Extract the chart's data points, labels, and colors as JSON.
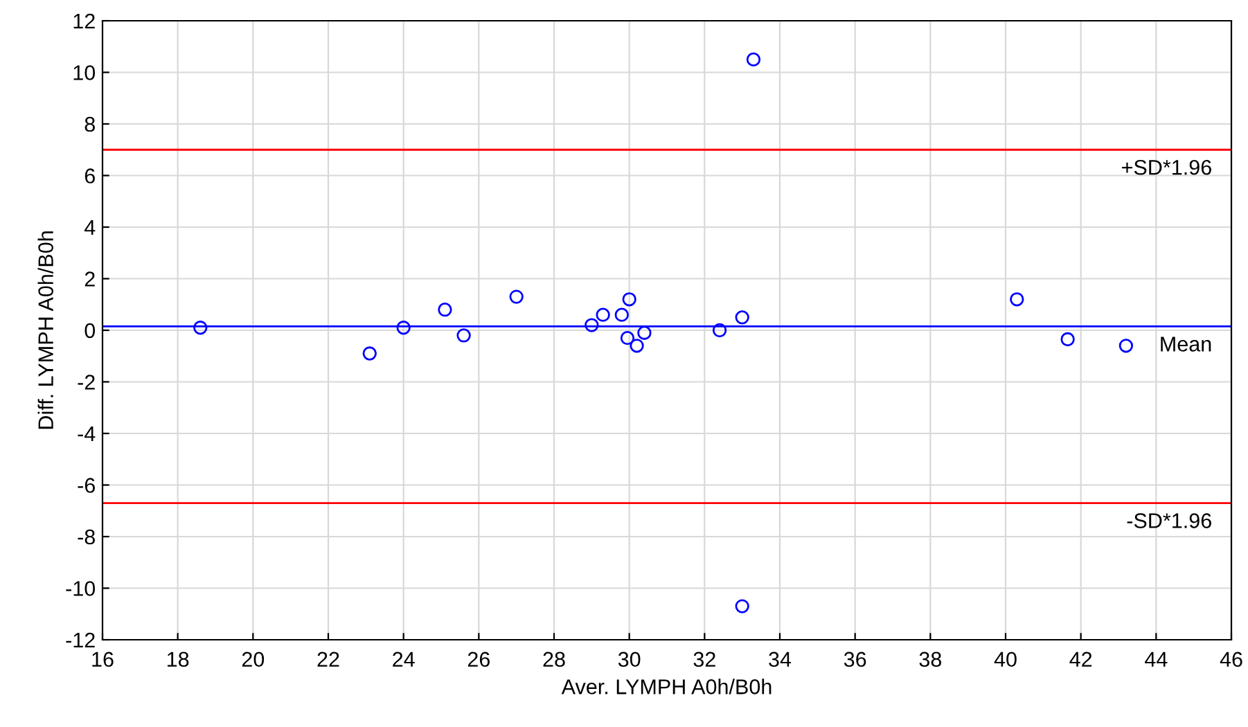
{
  "chart_data": {
    "type": "scatter",
    "xlabel": "Aver. LYMPH A0h/B0h",
    "ylabel": "Diff. LYMPH A0h/B0h",
    "x": [
      18.6,
      23.1,
      24.0,
      25.1,
      25.6,
      27.0,
      29.0,
      29.3,
      29.8,
      30.0,
      29.95,
      30.2,
      30.4,
      32.4,
      33.0,
      33.3,
      33.0,
      40.3,
      41.65,
      43.2
    ],
    "series": [
      {
        "color": "#0000ff",
        "values": [
          0.1,
          -0.9,
          0.1,
          0.8,
          -0.2,
          1.3,
          0.2,
          0.6,
          0.6,
          1.2,
          -0.3,
          -0.6,
          -0.1,
          0.0,
          0.5,
          10.5,
          -10.7,
          1.2,
          -0.35,
          -0.6
        ]
      }
    ],
    "xlim": [
      16,
      46
    ],
    "xticks": [
      16,
      18,
      20,
      22,
      24,
      26,
      28,
      30,
      32,
      34,
      36,
      38,
      40,
      42,
      44,
      46
    ],
    "ylim": [
      -12,
      12
    ],
    "yticks": [
      -12,
      -10,
      -8,
      -6,
      -4,
      -2,
      0,
      2,
      4,
      6,
      8,
      10,
      12
    ],
    "ref_lines": [
      {
        "axis": "y",
        "value": 7.0,
        "label": "+SD*1.96",
        "color": "#ff0000"
      },
      {
        "axis": "y",
        "value": 0.15,
        "label": "Mean",
        "color": "#0000ff"
      },
      {
        "axis": "y",
        "value": -6.7,
        "label": "-SD*1.96",
        "color": "#ff0000"
      }
    ],
    "grid": true,
    "marker": "circle",
    "legend": false
  }
}
